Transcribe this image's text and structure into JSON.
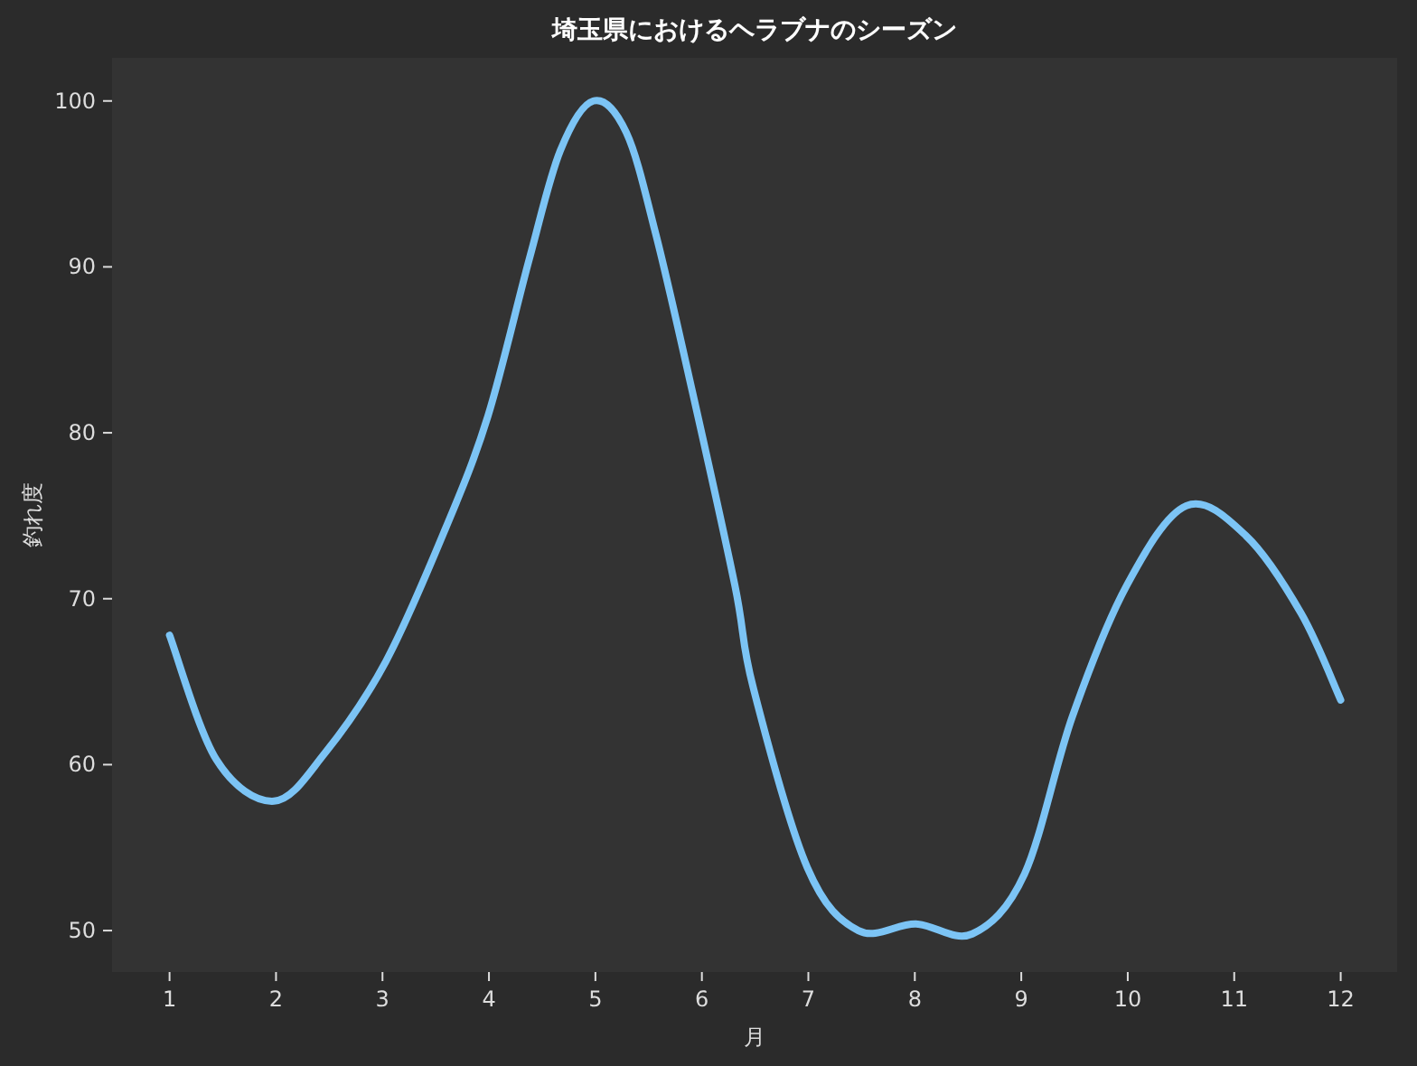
{
  "chart_data": {
    "type": "line",
    "title": "埼玉県におけるヘラブナのシーズン",
    "xlabel": "月",
    "ylabel": "釣れ度",
    "series": [
      {
        "color": "#7cc4f5",
        "x": [
          1,
          1.44,
          1.98,
          2.46,
          3.03,
          3.59,
          3.99,
          4.38,
          4.67,
          4.98,
          5.29,
          5.57,
          5.91,
          6.31,
          6.48,
          6.99,
          7.47,
          8.01,
          8.54,
          9.03,
          9.48,
          9.99,
          10.55,
          11.11,
          11.63,
          12
        ],
        "values": [
          67.8,
          60.3,
          57.8,
          60.7,
          66.2,
          74.2,
          81.0,
          90.5,
          97.0,
          100,
          98.1,
          91.9,
          82.5,
          70.8,
          64.7,
          53.8,
          50.0,
          50.4,
          49.8,
          53.4,
          62.9,
          70.8,
          75.6,
          73.8,
          69.1,
          63.9
        ]
      }
    ],
    "xlim": [
      0.46,
      12.53
    ],
    "xticks": [
      1,
      2,
      3,
      4,
      5,
      6,
      7,
      8,
      9,
      10,
      11,
      12
    ],
    "ylim": [
      47.5,
      102.6
    ],
    "yticks": [
      50,
      60,
      70,
      80,
      90,
      100
    ],
    "grid": false,
    "marker": "none",
    "line_style": "solid"
  }
}
